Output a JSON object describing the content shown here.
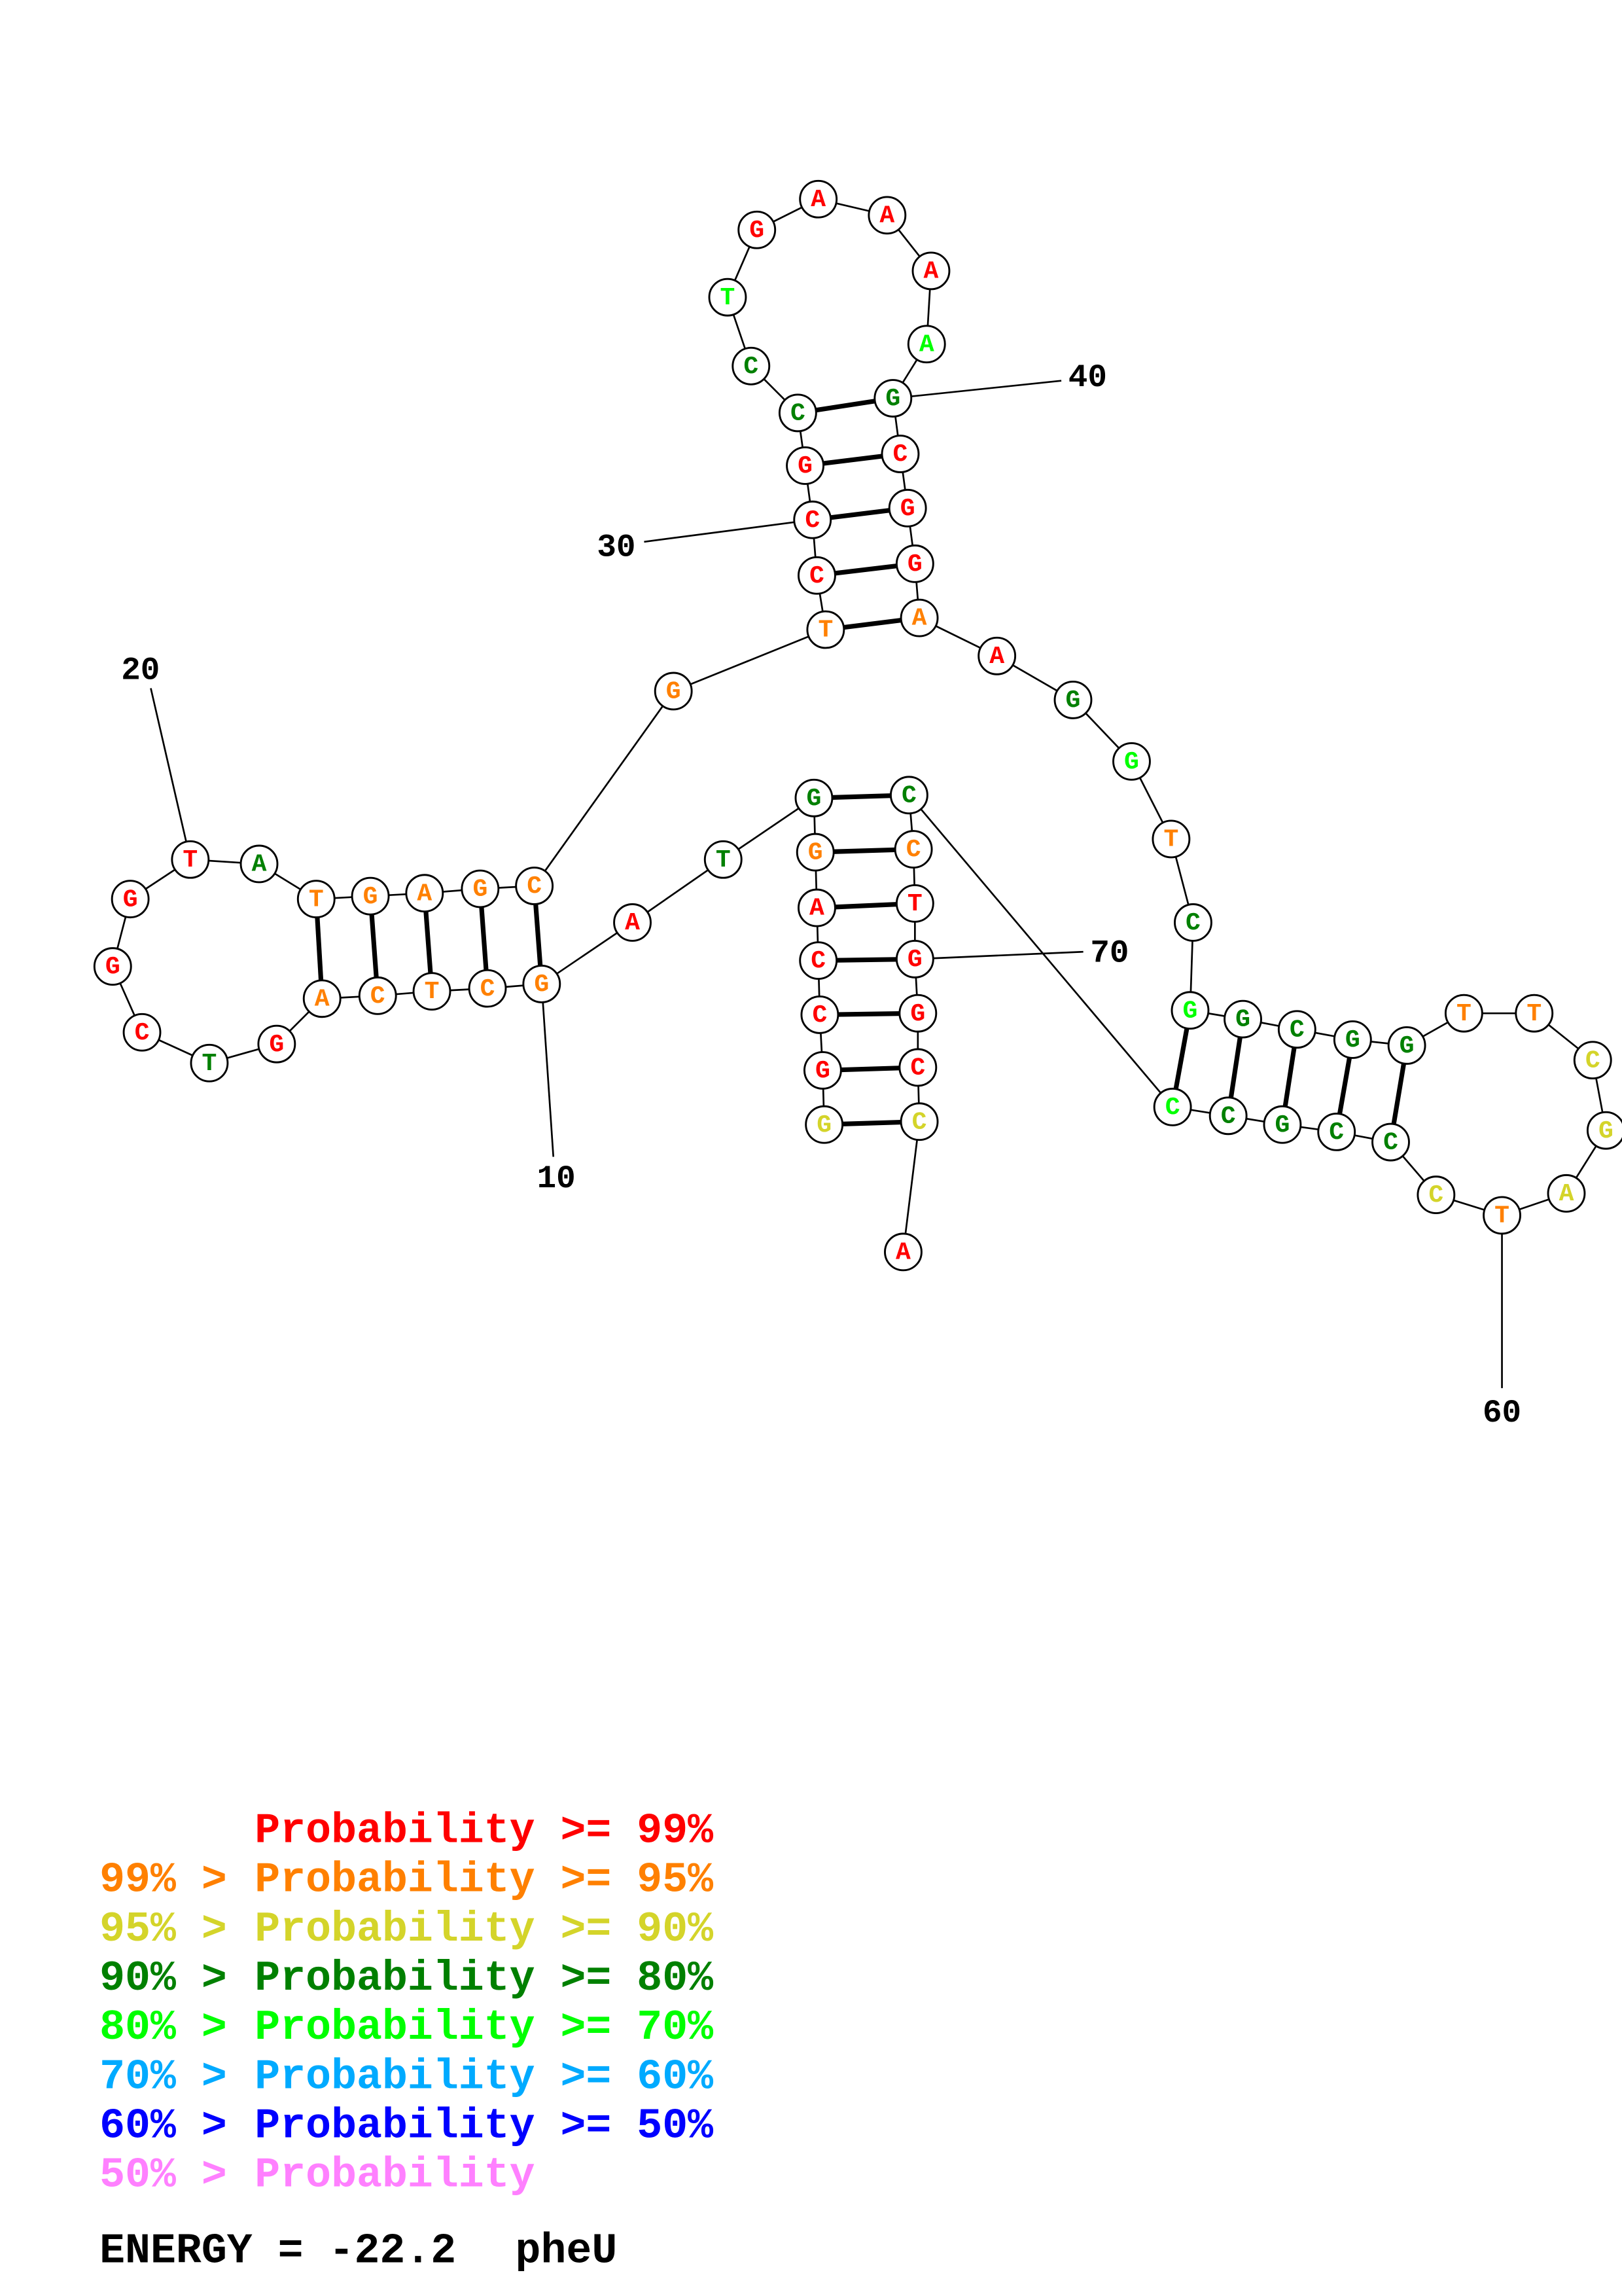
{
  "structure": {
    "sequence": "GGCCAGGTAGCTCAGTCGGTATGAGCGTCCGCCTGAAAAGCGGAAGGTCGGCGGTTCGATCCCGCCCCTGGCCA",
    "probability_class": [
      "Y",
      "R",
      "R",
      "R",
      "R",
      "O",
      "G",
      "G",
      "R",
      "O",
      "O",
      "O",
      "O",
      "O",
      "R",
      "G",
      "R",
      "R",
      "R",
      "R",
      "G",
      "O",
      "O",
      "O",
      "O",
      "O",
      "O",
      "O",
      "R",
      "R",
      "R",
      "G",
      "G",
      "L",
      "R",
      "R",
      "R",
      "R",
      "L",
      "G",
      "R",
      "R",
      "R",
      "O",
      "R",
      "G",
      "L",
      "O",
      "G",
      "L",
      "G",
      "G",
      "G",
      "G",
      "O",
      "O",
      "Y",
      "Y",
      "Y",
      "O",
      "Y",
      "G",
      "G",
      "G",
      "G",
      "L",
      "G",
      "O",
      "R",
      "R",
      "R",
      "R",
      "Y",
      "R"
    ],
    "pairs": [
      [
        1,
        73
      ],
      [
        2,
        72
      ],
      [
        3,
        71
      ],
      [
        4,
        70
      ],
      [
        5,
        69
      ],
      [
        6,
        68
      ],
      [
        7,
        67
      ],
      [
        10,
        26
      ],
      [
        11,
        25
      ],
      [
        12,
        24
      ],
      [
        13,
        23
      ],
      [
        14,
        22
      ],
      [
        28,
        44
      ],
      [
        29,
        43
      ],
      [
        30,
        42
      ],
      [
        31,
        41
      ],
      [
        32,
        40
      ],
      [
        50,
        66
      ],
      [
        51,
        65
      ],
      [
        52,
        64
      ],
      [
        53,
        63
      ],
      [
        54,
        62
      ]
    ],
    "position_labels": [
      {
        "index": 10,
        "text": "10"
      },
      {
        "index": 20,
        "text": "20"
      },
      {
        "index": 30,
        "text": "30"
      },
      {
        "index": 40,
        "text": "40"
      },
      {
        "index": 60,
        "text": "60"
      },
      {
        "index": 70,
        "text": "70"
      }
    ]
  },
  "colors": {
    "R": "#FF0000",
    "O": "#FF8000",
    "Y": "#D4D42A",
    "G": "#008000",
    "L": "#00FF00",
    "C": "#00AAFF",
    "B": "#0000FF",
    "P": "#FF80FF"
  },
  "legend": {
    "rows": [
      {
        "prefix": "",
        "text": "Probability >= 99%",
        "class": "R"
      },
      {
        "prefix": "99% >",
        "text": "Probability >= 95%",
        "class": "O"
      },
      {
        "prefix": "95% >",
        "text": "Probability >= 90%",
        "class": "Y"
      },
      {
        "prefix": "90% >",
        "text": "Probability >= 80%",
        "class": "G"
      },
      {
        "prefix": "80% >",
        "text": "Probability >= 70%",
        "class": "L"
      },
      {
        "prefix": "70% >",
        "text": "Probability >= 60%",
        "class": "C"
      },
      {
        "prefix": "60% >",
        "text": "Probability >= 50%",
        "class": "B"
      },
      {
        "prefix": "50% >",
        "text": "Probability",
        "class": "P"
      }
    ],
    "energy_label": "ENERGY = -22.2",
    "name": "pheU"
  }
}
